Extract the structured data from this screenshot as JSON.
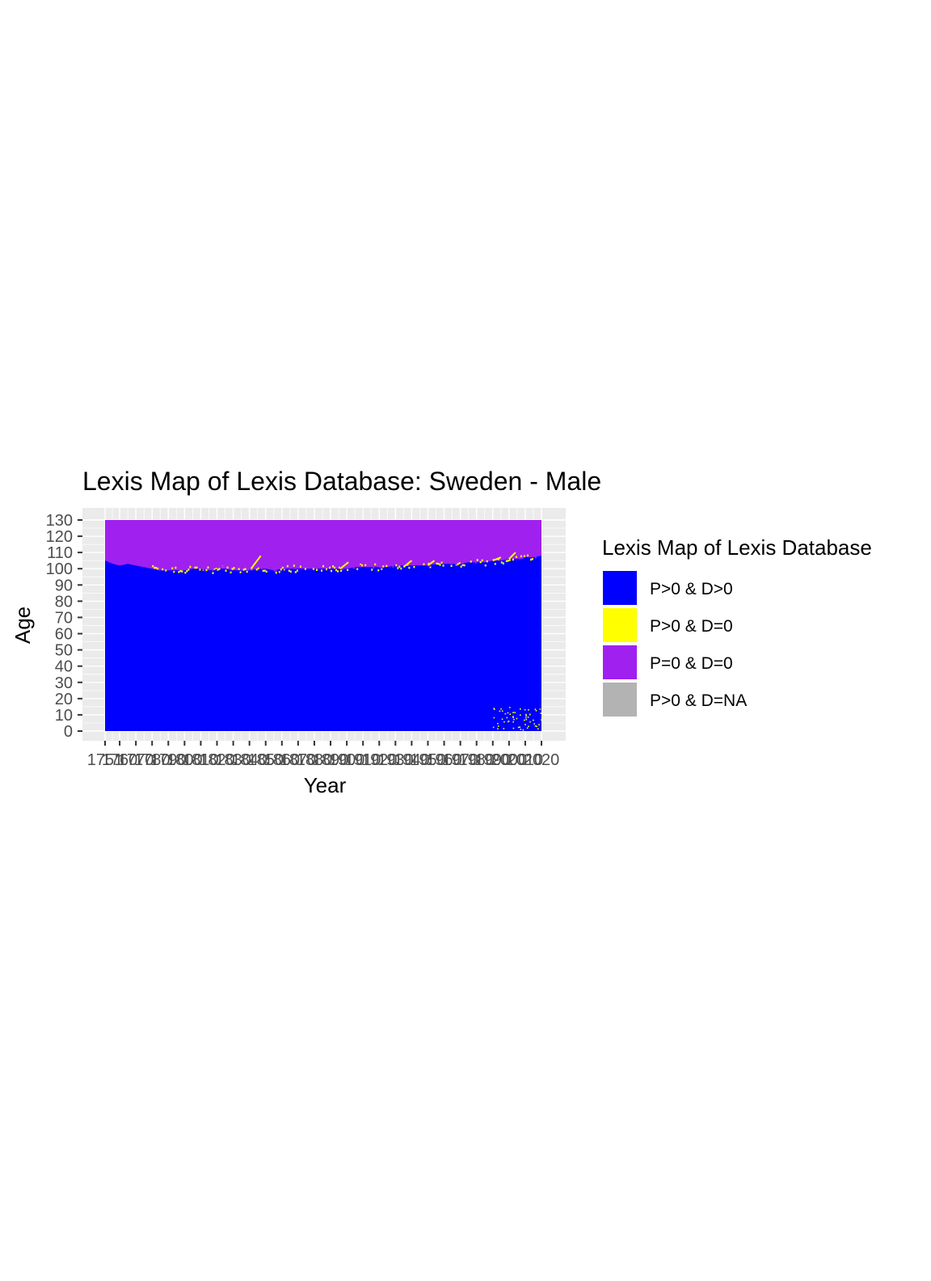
{
  "chart_data": {
    "type": "heatmap",
    "title": "Lexis Map of Lexis Database: Sweden - Male",
    "xlabel": "Year",
    "ylabel": "Age",
    "xlim": [
      1751,
      2020
    ],
    "ylim": [
      0,
      130
    ],
    "x_ticks": [
      "1751",
      "1760",
      "1770",
      "1780",
      "1790",
      "1800",
      "1810",
      "1820",
      "1830",
      "1840",
      "1850",
      "1860",
      "1870",
      "1880",
      "1890",
      "1900",
      "1910",
      "1920",
      "1930",
      "1940",
      "1950",
      "1960",
      "1970",
      "1980",
      "1990",
      "2000",
      "2010",
      "2020"
    ],
    "y_ticks": [
      "0",
      "10",
      "20",
      "30",
      "40",
      "50",
      "60",
      "70",
      "80",
      "90",
      "100",
      "110",
      "120",
      "130"
    ],
    "legend": {
      "title": "Lexis Map of Lexis Database",
      "position": "right",
      "entries": [
        {
          "label": "P>0 & D>0",
          "color": "#0000ff"
        },
        {
          "label": "P>0 & D=0",
          "color": "#ffff00"
        },
        {
          "label": "P=0 & D=0",
          "color": "#a020f0"
        },
        {
          "label": "P>0 & D=NA",
          "color": "#b3b3b3"
        }
      ]
    },
    "boundary_age_by_year": [
      [
        1751,
        105
      ],
      [
        1756,
        103
      ],
      [
        1760,
        102
      ],
      [
        1765,
        103
      ],
      [
        1770,
        102
      ],
      [
        1775,
        101
      ],
      [
        1780,
        100
      ],
      [
        1785,
        99
      ],
      [
        1790,
        99
      ],
      [
        1795,
        99
      ],
      [
        1800,
        99
      ],
      [
        1805,
        100
      ],
      [
        1810,
        100
      ],
      [
        1815,
        99
      ],
      [
        1820,
        100
      ],
      [
        1825,
        100
      ],
      [
        1830,
        99
      ],
      [
        1835,
        99
      ],
      [
        1840,
        99
      ],
      [
        1845,
        100
      ],
      [
        1850,
        100
      ],
      [
        1855,
        99
      ],
      [
        1860,
        100
      ],
      [
        1865,
        100
      ],
      [
        1870,
        100
      ],
      [
        1875,
        100
      ],
      [
        1880,
        100
      ],
      [
        1885,
        100
      ],
      [
        1890,
        100
      ],
      [
        1895,
        100
      ],
      [
        1900,
        100
      ],
      [
        1905,
        101
      ],
      [
        1910,
        101
      ],
      [
        1915,
        101
      ],
      [
        1920,
        101
      ],
      [
        1925,
        101
      ],
      [
        1930,
        102
      ],
      [
        1935,
        102
      ],
      [
        1940,
        102
      ],
      [
        1945,
        102
      ],
      [
        1950,
        102
      ],
      [
        1955,
        103
      ],
      [
        1960,
        103
      ],
      [
        1965,
        103
      ],
      [
        1970,
        103
      ],
      [
        1975,
        104
      ],
      [
        1980,
        104
      ],
      [
        1985,
        104
      ],
      [
        1990,
        105
      ],
      [
        1995,
        105
      ],
      [
        2000,
        106
      ],
      [
        2005,
        106
      ],
      [
        2010,
        107
      ],
      [
        2015,
        107
      ],
      [
        2020,
        108
      ]
    ],
    "yellow_diagonals": [
      [
        1841,
        100,
        1847,
        108
      ],
      [
        1896,
        100,
        1901,
        104
      ],
      [
        1935,
        101,
        1940,
        105
      ],
      [
        1950,
        102,
        1954,
        105
      ],
      [
        1990,
        105,
        1995,
        107
      ],
      [
        2000,
        106,
        2004,
        110
      ]
    ],
    "grid": true
  }
}
